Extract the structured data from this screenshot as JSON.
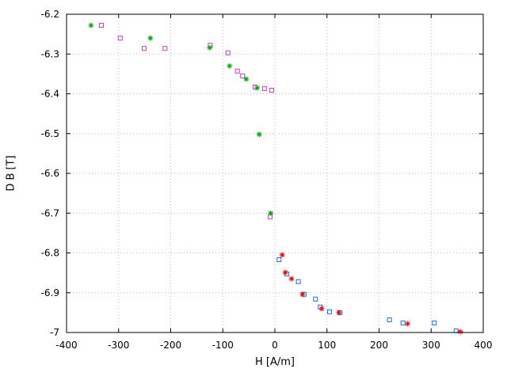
{
  "chart": {
    "background": "#ffffff",
    "grid_color": "#b8b8b8",
    "axis_color": "#000000",
    "tick_font_size": 12
  },
  "chart_data": {
    "type": "scatter",
    "title": "",
    "xlabel": "H [A/m]",
    "ylabel": "D B [T]",
    "xlim": [
      -400,
      400
    ],
    "ylim": [
      -7,
      -6.2
    ],
    "grid": true,
    "legend": false,
    "xticks": [
      -400,
      -300,
      -200,
      -100,
      0,
      100,
      200,
      300,
      400
    ],
    "xtick_labels": [
      "-400",
      "-300",
      "-200",
      "-100",
      "0",
      "100",
      "200",
      "300",
      "400"
    ],
    "yticks": [
      -7,
      -6.9,
      -6.8,
      -6.7,
      -6.6,
      -6.5,
      -6.4,
      -6.3,
      -6.2
    ],
    "ytick_labels": [
      "-7",
      "-6.9",
      "-6.8",
      "-6.7",
      "-6.6",
      "-6.5",
      "-6.4",
      "-6.3",
      "-6.2"
    ],
    "series": [
      {
        "name": "magenta-squares",
        "marker": "square",
        "color": "#bf40bf",
        "points": [
          [
            -333,
            -6.228
          ],
          [
            -297,
            -6.26
          ],
          [
            -251,
            -6.286
          ],
          [
            -211,
            -6.286
          ],
          [
            -124,
            -6.278
          ],
          [
            -90,
            -6.297
          ],
          [
            -72,
            -6.343
          ],
          [
            -62,
            -6.355
          ],
          [
            -38,
            -6.383
          ],
          [
            -20,
            -6.387
          ],
          [
            -6,
            -6.391
          ],
          [
            -9,
            -6.709
          ]
        ]
      },
      {
        "name": "green-asterisks",
        "marker": "asterisk",
        "color": "#00a000",
        "points": [
          [
            -353,
            -6.228
          ],
          [
            -239,
            -6.26
          ],
          [
            -125,
            -6.284
          ],
          [
            -87,
            -6.33
          ],
          [
            -55,
            -6.363
          ],
          [
            -34,
            -6.385
          ],
          [
            -30,
            -6.502
          ],
          [
            -8,
            -6.7
          ]
        ]
      },
      {
        "name": "blue-squares",
        "marker": "square",
        "color": "#2070c8",
        "points": [
          [
            8,
            -6.817
          ],
          [
            23,
            -6.853
          ],
          [
            45,
            -6.872
          ],
          [
            56,
            -6.904
          ],
          [
            78,
            -6.916
          ],
          [
            87,
            -6.936
          ],
          [
            105,
            -6.948
          ],
          [
            125,
            -6.95
          ],
          [
            220,
            -6.968
          ],
          [
            246,
            -6.976
          ],
          [
            306,
            -6.976
          ],
          [
            348,
            -6.996
          ]
        ]
      },
      {
        "name": "red-asterisks",
        "marker": "asterisk",
        "color": "#e00000",
        "points": [
          [
            14,
            -6.805
          ],
          [
            20,
            -6.849
          ],
          [
            32,
            -6.865
          ],
          [
            53,
            -6.904
          ],
          [
            90,
            -6.94
          ],
          [
            123,
            -6.95
          ],
          [
            255,
            -6.978
          ],
          [
            356,
            -6.998
          ]
        ]
      }
    ]
  }
}
